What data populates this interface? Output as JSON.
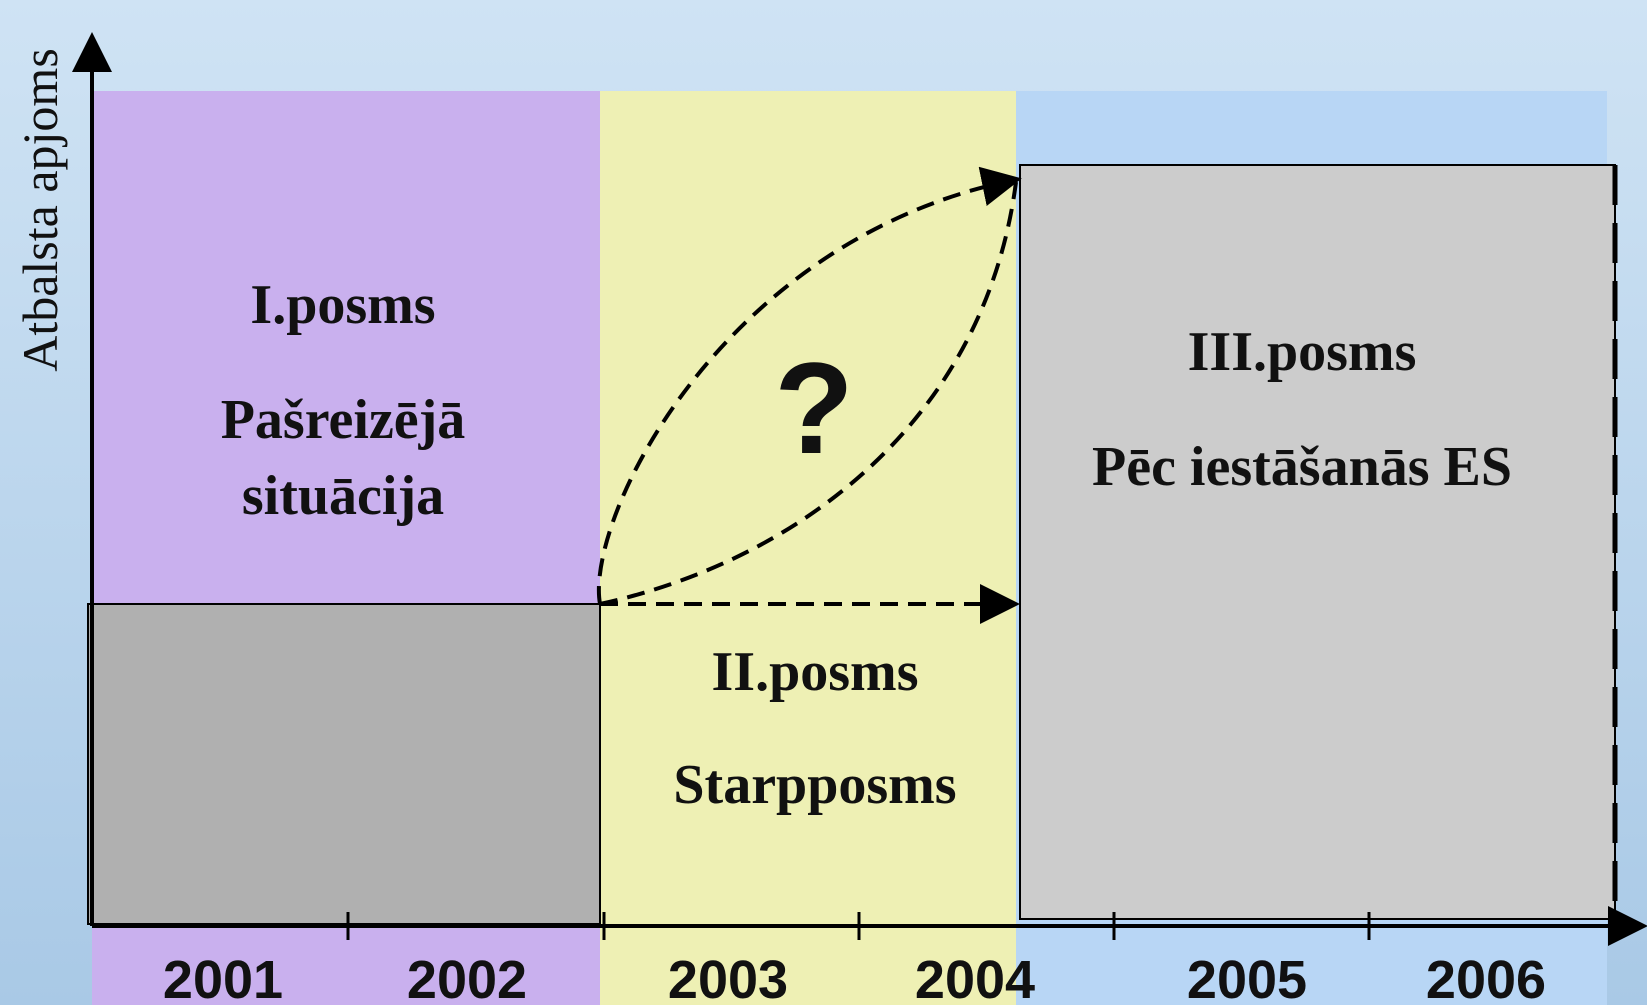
{
  "y_axis_label": "Atbalsta apjoms",
  "phases": [
    {
      "title": "I.posms",
      "subtitle_lines": [
        "Pašreizējā",
        "situācija"
      ]
    },
    {
      "title": "II.posms",
      "subtitle_lines": [
        "Starpposms"
      ]
    },
    {
      "title": "III.posms",
      "subtitle_lines": [
        "Pēc iestāšanās ES"
      ]
    }
  ],
  "question_mark": "?",
  "years": [
    "2001",
    "2002",
    "2003",
    "2004",
    "2005",
    "2006"
  ]
}
